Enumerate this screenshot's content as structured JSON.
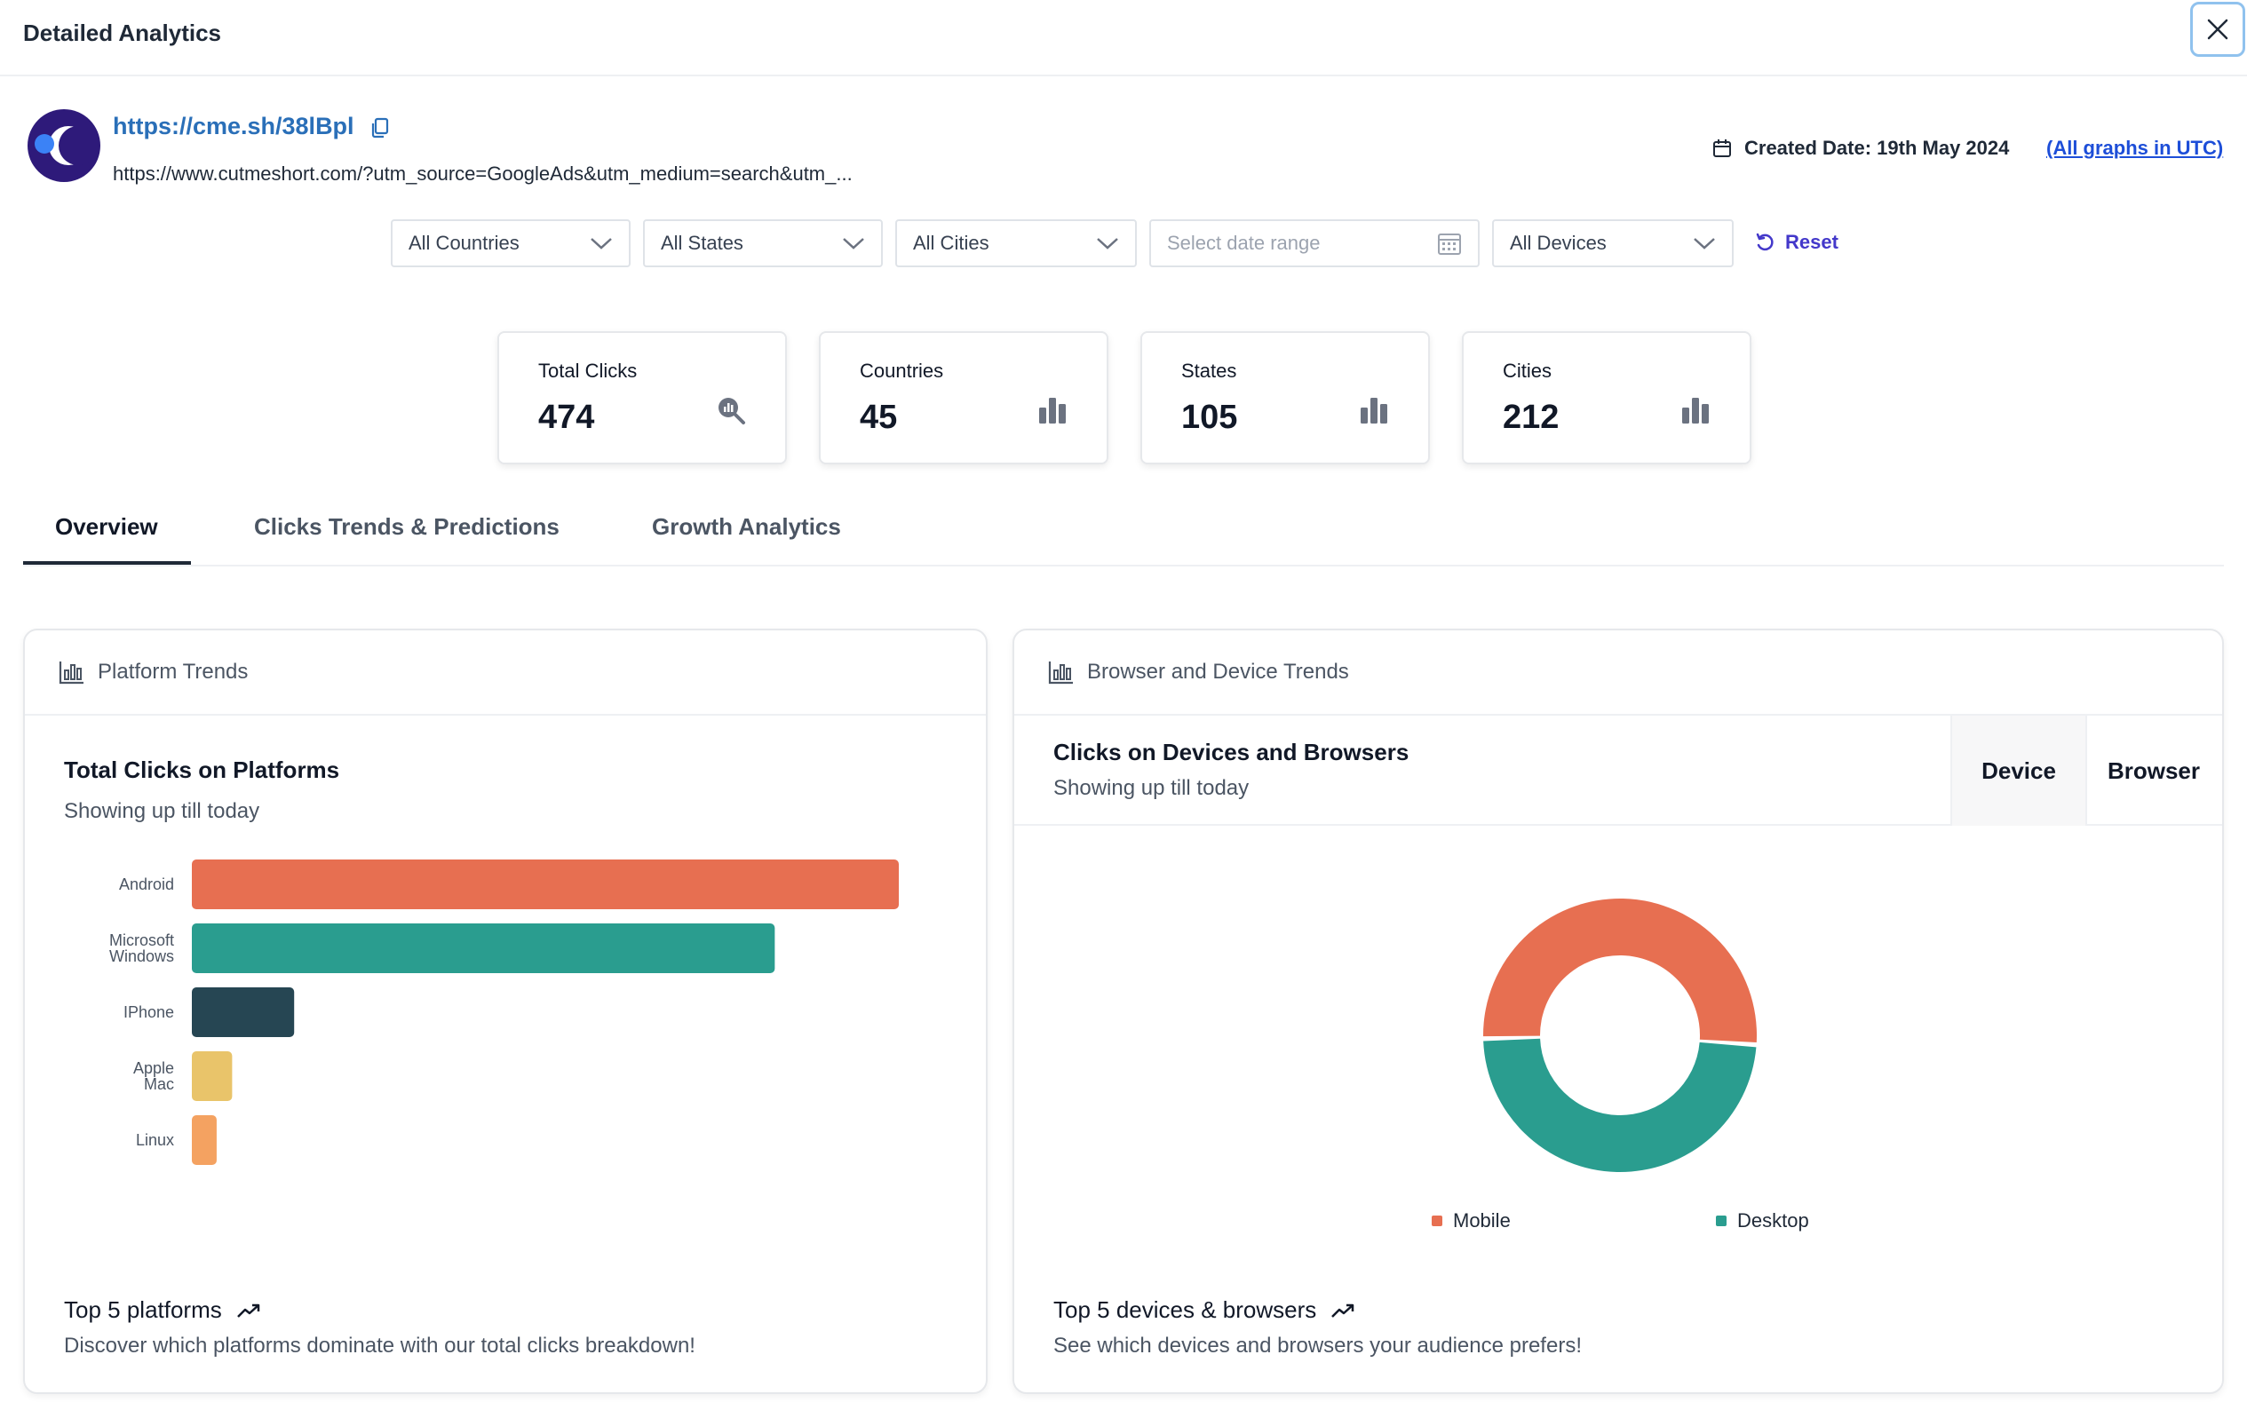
{
  "header": {
    "title": "Detailed Analytics"
  },
  "link": {
    "short_url": "https://cme.sh/38lBpl",
    "long_url": "https://www.cutmeshort.com/?utm_source=GoogleAds&utm_medium=search&utm_...",
    "created_date": "Created Date: 19th May 2024",
    "utc_note": "(All graphs in UTC)"
  },
  "filters": {
    "countries": "All Countries",
    "states": "All States",
    "cities": "All Cities",
    "date_placeholder": "Select date range",
    "devices": "All Devices",
    "reset_label": "Reset"
  },
  "stats": [
    {
      "label": "Total Clicks",
      "value": "474"
    },
    {
      "label": "Countries",
      "value": "45"
    },
    {
      "label": "States",
      "value": "105"
    },
    {
      "label": "Cities",
      "value": "212"
    }
  ],
  "tabs": [
    {
      "label": "Overview"
    },
    {
      "label": "Clicks Trends & Predictions"
    },
    {
      "label": "Growth Analytics"
    }
  ],
  "platform_panel": {
    "header": "Platform Trends",
    "title": "Total Clicks on Platforms",
    "subtitle": "Showing up till today",
    "footer_title": "Top 5 platforms",
    "footer_sub": "Discover which platforms dominate with our total clicks breakdown!"
  },
  "browser_panel": {
    "header": "Browser and Device Trends",
    "title": "Clicks on Devices and Browsers",
    "subtitle": "Showing up till today",
    "toggle_device": "Device",
    "toggle_browser": "Browser",
    "footer_title": "Top 5 devices & browsers",
    "footer_sub": "See which devices and browsers your audience prefers!"
  },
  "chart_data": [
    {
      "type": "bar",
      "orientation": "horizontal",
      "categories": [
        [
          "Android"
        ],
        [
          "Microsoft",
          "Windows"
        ],
        [
          "IPhone"
        ],
        [
          "Apple",
          "Mac"
        ],
        [
          "Linux"
        ]
      ],
      "values": [
        228,
        188,
        33,
        13,
        8
      ],
      "colors": [
        "#e76f51",
        "#2a9d8f",
        "#264653",
        "#e9c46a",
        "#f4a261"
      ],
      "grid": false
    },
    {
      "type": "pie",
      "variant": "donut",
      "labels": [
        "Mobile",
        "Desktop"
      ],
      "values": [
        51.5,
        48.5
      ],
      "colors": [
        "#e76f51",
        "#2a9d8f"
      ],
      "legend": "bottom"
    }
  ]
}
